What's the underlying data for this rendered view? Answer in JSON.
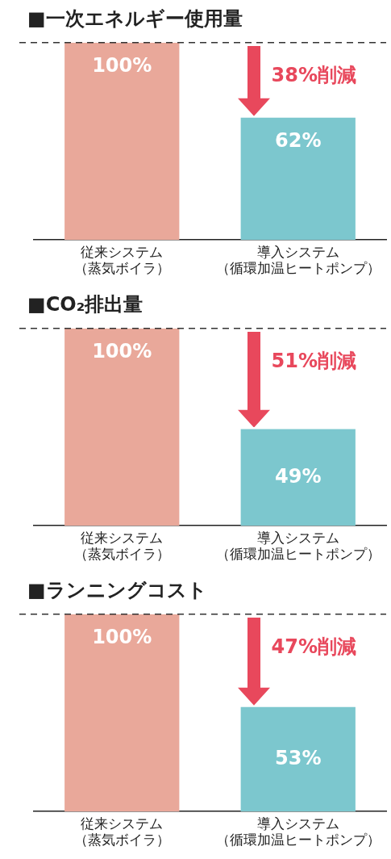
{
  "chart_data": [
    {
      "type": "bar",
      "title": "■一次エネルギー使用量",
      "categories": [
        "従来システム（蒸気ボイラ）",
        "導入システム（循環加温ヒートポンプ）"
      ],
      "values": [
        100,
        62
      ],
      "value_labels": [
        "100%",
        "62%"
      ],
      "colors": [
        "#e9a89a",
        "#7cc7ce"
      ],
      "tick_labels": "x",
      "annotations": [
        "38%削減"
      ]
    },
    {
      "type": "bar",
      "title": "■CO₂排出量",
      "categories": [
        "従来システム（蒸気ボイラ）",
        "導入システム（循環加温ヒートポンプ）"
      ],
      "values": [
        100,
        49
      ],
      "value_labels": [
        "100%",
        "49%"
      ],
      "colors": [
        "#e9a89a",
        "#7cc7ce"
      ],
      "tick_labels": "x",
      "annotations": [
        "51%削減"
      ]
    },
    {
      "type": "bar",
      "title": "■ランニングコスト",
      "categories": [
        "従来システム（蒸気ボイラ）",
        "導入システム（循環加温ヒートポンプ）"
      ],
      "values": [
        100,
        53
      ],
      "value_labels": [
        "100%",
        "53%"
      ],
      "colors": [
        "#e9a89a",
        "#7cc7ce"
      ],
      "tick_labels": "x",
      "annotations": [
        "47%削減"
      ]
    }
  ]
}
